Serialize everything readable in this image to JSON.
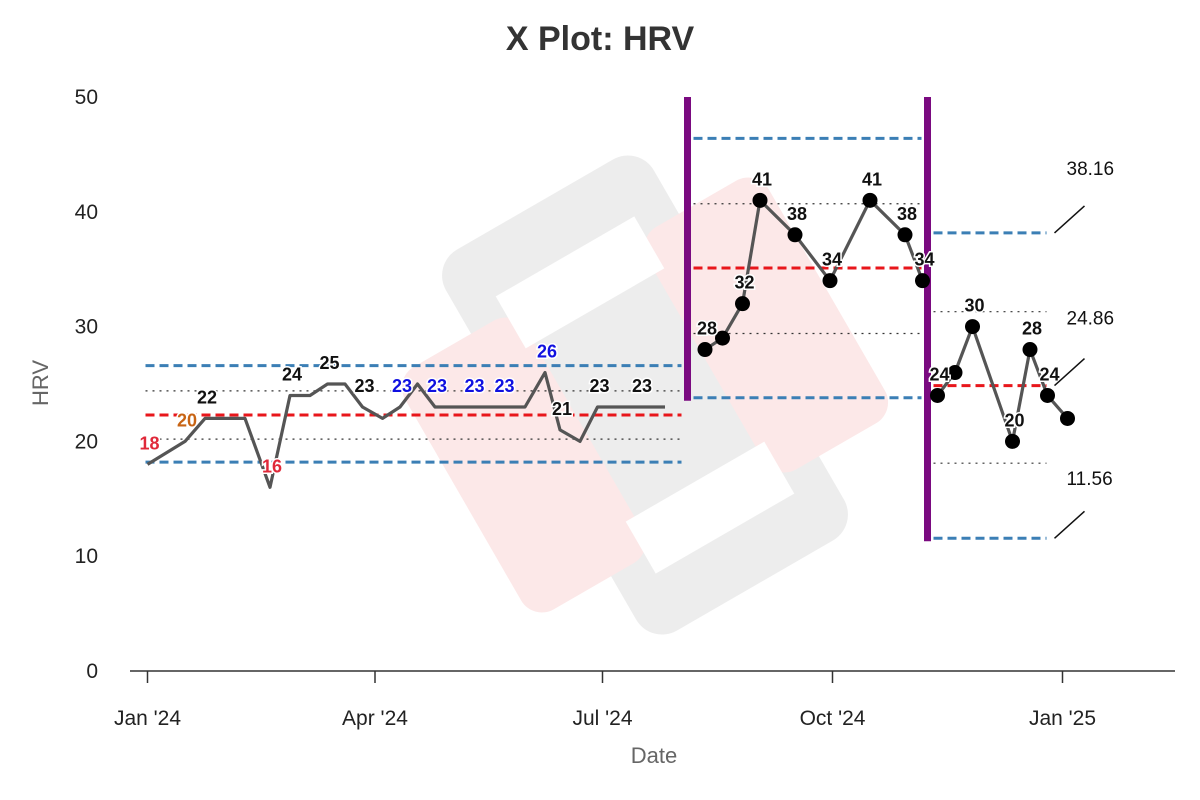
{
  "chart_data": {
    "type": "line",
    "title": "X Plot: HRV",
    "xlabel": "Date",
    "ylabel": "HRV",
    "ylim": [
      0,
      50
    ],
    "y_ticks": [
      0,
      10,
      20,
      30,
      40,
      50
    ],
    "x_range": [
      "2023-12-25",
      "2025-02-15"
    ],
    "x_ticks": [
      {
        "date": "2024-01-01",
        "label": "Jan '24"
      },
      {
        "date": "2024-04-01",
        "label": "Apr '24"
      },
      {
        "date": "2024-07-01",
        "label": "Jul '24"
      },
      {
        "date": "2024-10-01",
        "label": "Oct '24"
      },
      {
        "date": "2025-01-01",
        "label": "Jan '25"
      }
    ],
    "grid": false,
    "colors": {
      "line": "#555555",
      "marker": "#000000",
      "mean": "#e8161b",
      "limits": "#3b7fb5",
      "sigma": "#333333",
      "phase_divider": "#7a0a80",
      "label_default": "#111111",
      "label_low": "#e0293a",
      "label_warn": "#c86414",
      "label_run": "#1010e0"
    },
    "phase_dividers": [
      "2024-08-04",
      "2024-11-08"
    ],
    "phases": [
      {
        "start": "2024-01-01",
        "end": "2024-08-04",
        "mean": 22.3,
        "ucl": 26.6,
        "lcl": 18.2,
        "upper_sigma": 24.4,
        "lower_sigma": 20.2,
        "show_markers": false,
        "points": [
          {
            "x": "2024-01-01",
            "y": 18,
            "label": "18",
            "label_color": "low"
          },
          {
            "x": "2024-01-16",
            "y": 20,
            "label": "20",
            "label_color": "warn"
          },
          {
            "x": "2024-01-24",
            "y": 22,
            "label": "22",
            "label_color": "default"
          },
          {
            "x": "2024-02-09",
            "y": 22
          },
          {
            "x": "2024-02-19",
            "y": 16,
            "label": "16",
            "label_color": "low"
          },
          {
            "x": "2024-02-27",
            "y": 24,
            "label": "24",
            "label_color": "default"
          },
          {
            "x": "2024-03-06",
            "y": 24
          },
          {
            "x": "2024-03-13",
            "y": 25,
            "label": "25",
            "label_color": "default"
          },
          {
            "x": "2024-03-20",
            "y": 25
          },
          {
            "x": "2024-03-27",
            "y": 23,
            "label": "23",
            "label_color": "default"
          },
          {
            "x": "2024-04-04",
            "y": 22
          },
          {
            "x": "2024-04-11",
            "y": 23,
            "label": "23",
            "label_color": "run"
          },
          {
            "x": "2024-04-18",
            "y": 25
          },
          {
            "x": "2024-04-25",
            "y": 23,
            "label": "23",
            "label_color": "run"
          },
          {
            "x": "2024-05-02",
            "y": 23
          },
          {
            "x": "2024-05-10",
            "y": 23,
            "label": "23",
            "label_color": "run"
          },
          {
            "x": "2024-05-22",
            "y": 23,
            "label": "23",
            "label_color": "run"
          },
          {
            "x": "2024-05-31",
            "y": 23
          },
          {
            "x": "2024-06-08",
            "y": 26,
            "label": "26",
            "label_color": "run"
          },
          {
            "x": "2024-06-14",
            "y": 21,
            "label": "21",
            "label_color": "default"
          },
          {
            "x": "2024-06-22",
            "y": 20
          },
          {
            "x": "2024-06-29",
            "y": 23,
            "label": "23",
            "label_color": "default"
          },
          {
            "x": "2024-07-16",
            "y": 23,
            "label": "23",
            "label_color": "default"
          },
          {
            "x": "2024-07-26",
            "y": 23
          }
        ]
      },
      {
        "start": "2024-08-04",
        "end": "2024-11-08",
        "mean": 35.1,
        "ucl": 46.4,
        "lcl": 23.8,
        "upper_sigma": 40.7,
        "lower_sigma": 29.4,
        "show_markers": true,
        "points": [
          {
            "x": "2024-08-11",
            "y": 28,
            "label": "28",
            "label_color": "default"
          },
          {
            "x": "2024-08-18",
            "y": 29
          },
          {
            "x": "2024-08-26",
            "y": 32,
            "label": "32",
            "label_color": "default"
          },
          {
            "x": "2024-09-02",
            "y": 41,
            "label": "41",
            "label_color": "default"
          },
          {
            "x": "2024-09-16",
            "y": 38,
            "label": "38",
            "label_color": "default"
          },
          {
            "x": "2024-09-30",
            "y": 34,
            "label": "34",
            "label_color": "default"
          },
          {
            "x": "2024-10-16",
            "y": 41,
            "label": "41",
            "label_color": "default"
          },
          {
            "x": "2024-10-30",
            "y": 38,
            "label": "38",
            "label_color": "default"
          },
          {
            "x": "2024-11-06",
            "y": 34,
            "label": "34",
            "label_color": "default"
          }
        ]
      },
      {
        "start": "2024-11-08",
        "end": "2024-12-28",
        "mean": 24.86,
        "ucl": 38.16,
        "lcl": 11.56,
        "upper_sigma": 31.3,
        "lower_sigma": 18.1,
        "show_markers": true,
        "points": [
          {
            "x": "2024-11-12",
            "y": 24,
            "label": "24",
            "label_color": "default"
          },
          {
            "x": "2024-11-19",
            "y": 26
          },
          {
            "x": "2024-11-26",
            "y": 30,
            "label": "30",
            "label_color": "default"
          },
          {
            "x": "2024-12-12",
            "y": 20,
            "label": "20",
            "label_color": "default"
          },
          {
            "x": "2024-12-19",
            "y": 28,
            "label": "28",
            "label_color": "default"
          },
          {
            "x": "2024-12-26",
            "y": 24,
            "label": "24",
            "label_color": "default"
          },
          {
            "x": "2025-01-03",
            "y": 22
          }
        ]
      }
    ],
    "limit_annotations": [
      {
        "value": 38.16,
        "label": "38.16",
        "label_y": 43.8
      },
      {
        "value": 24.86,
        "label": "24.86",
        "label_y": 30.8
      },
      {
        "value": 11.56,
        "label": "11.56",
        "label_y": 16.8
      }
    ]
  }
}
